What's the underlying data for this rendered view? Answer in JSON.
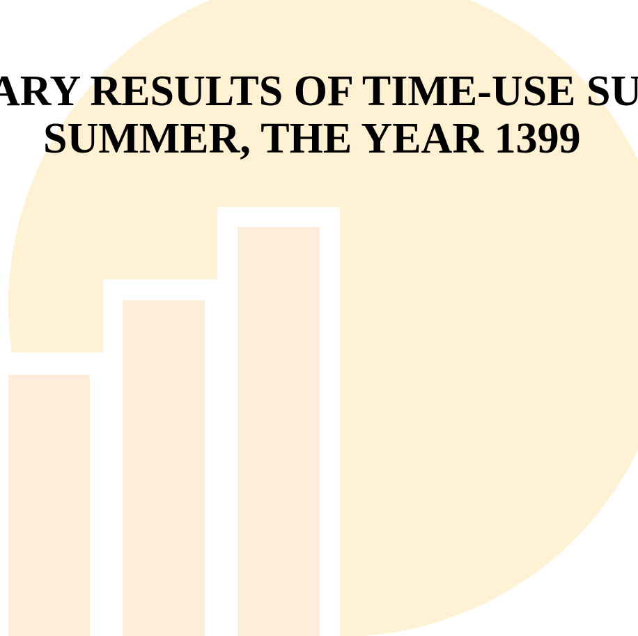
{
  "title": {
    "line_1": "ARY RESULTS OF TIME-USE SUR",
    "line_2": "SUMMER, THE YEAR 1399"
  },
  "background": {
    "icon": "bar-chart-circle-icon",
    "circle_color": "#fff2d4",
    "bar_color": "#ffeddc",
    "bar_outline_color": "#ffffff"
  }
}
